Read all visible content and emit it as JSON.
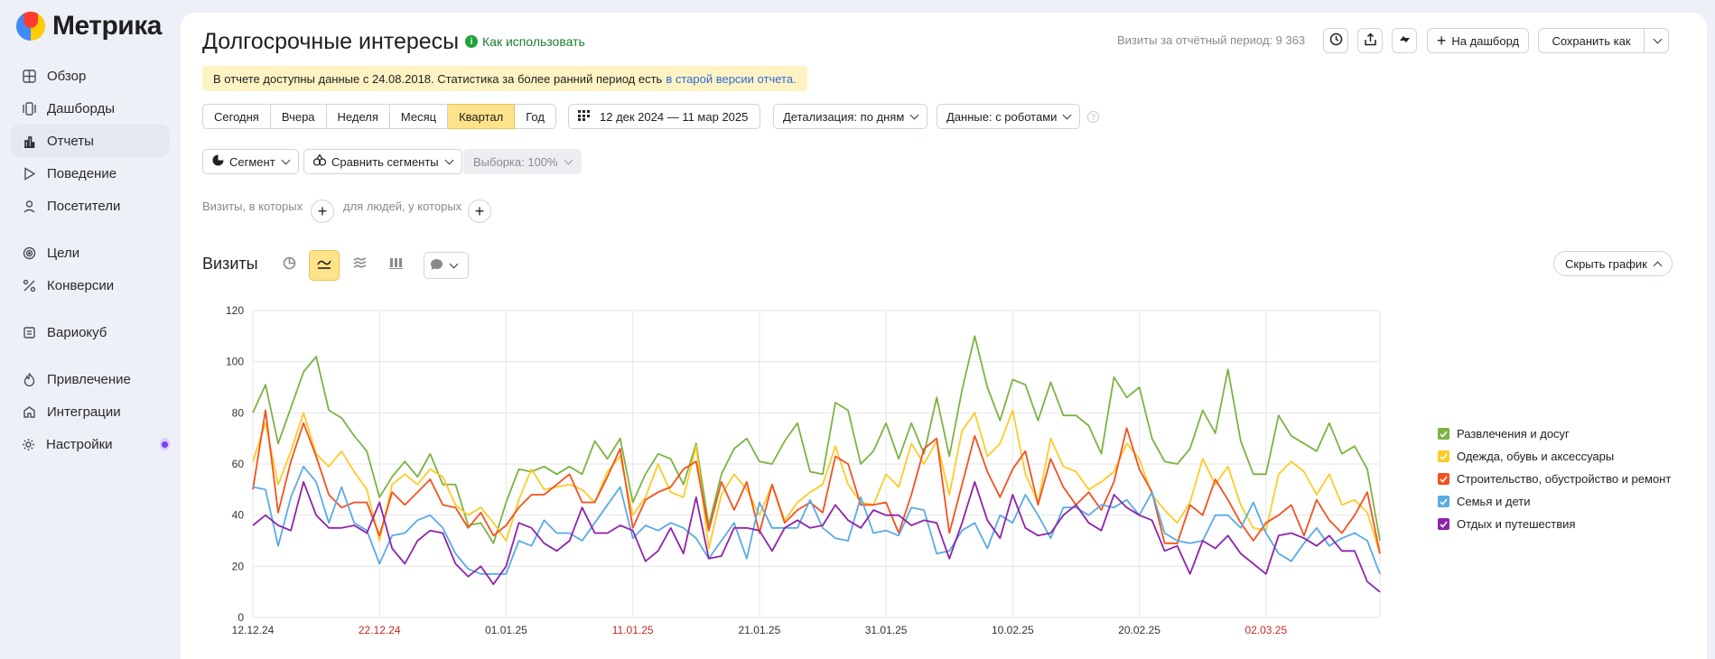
{
  "app": {
    "name": "Метрика"
  },
  "sidebar": {
    "items": [
      {
        "label": "Обзор",
        "icon": "grid-icon"
      },
      {
        "label": "Дашборды",
        "icon": "dashboards-icon"
      },
      {
        "label": "Отчеты",
        "icon": "bar-chart-icon",
        "active": true
      },
      {
        "label": "Поведение",
        "icon": "play-icon"
      },
      {
        "label": "Посетители",
        "icon": "person-icon"
      },
      {
        "label": "Цели",
        "icon": "target-icon"
      },
      {
        "label": "Конверсии",
        "icon": "percent-icon"
      },
      {
        "label": "Вариокуб",
        "icon": "cube-icon"
      },
      {
        "label": "Привлечение",
        "icon": "flame-icon"
      },
      {
        "label": "Интеграции",
        "icon": "integration-icon"
      },
      {
        "label": "Настройки",
        "icon": "gear-icon"
      }
    ]
  },
  "header": {
    "title": "Долгосрочные интересы",
    "how_to_use": "Как использовать",
    "visits_stat": "Визиты за отчётный период: 9 363",
    "add_dashboard": "На дашборд",
    "save_as": "Сохранить как"
  },
  "notice": {
    "text": "В отчете доступны данные с 24.08.2018. Статистика за более ранний период есть",
    "link": "в старой версии отчета."
  },
  "period": {
    "options": [
      "Сегодня",
      "Вчера",
      "Неделя",
      "Месяц",
      "Квартал",
      "Год"
    ],
    "selected": "Квартал",
    "date_range": "12 дек 2024 — 11 мар 2025",
    "detail": "Детализация: по дням",
    "data": "Данные: с роботами"
  },
  "segments": {
    "segment": "Сегмент",
    "compare": "Сравнить сегменты",
    "sample": "Выборка: 100%",
    "visits_where": "Визиты, в которых",
    "for_people": "для людей, у которых"
  },
  "chart_section": {
    "title": "Визиты",
    "hide_chart": "Скрыть график"
  },
  "chart_data": {
    "type": "line",
    "ylim": [
      0,
      120
    ],
    "yticks": [
      0,
      20,
      40,
      60,
      80,
      100,
      120
    ],
    "xticks": [
      {
        "label": "12.12.24",
        "index": 0,
        "weekend": false
      },
      {
        "label": "22.12.24",
        "index": 10,
        "weekend": true
      },
      {
        "label": "01.01.25",
        "index": 20,
        "weekend": false
      },
      {
        "label": "11.01.25",
        "index": 30,
        "weekend": true
      },
      {
        "label": "21.01.25",
        "index": 40,
        "weekend": false
      },
      {
        "label": "31.01.25",
        "index": 50,
        "weekend": false
      },
      {
        "label": "10.02.25",
        "index": 60,
        "weekend": false
      },
      {
        "label": "20.02.25",
        "index": 70,
        "weekend": false
      },
      {
        "label": "02.03.25",
        "index": 80,
        "weekend": true
      }
    ],
    "x_count": 90,
    "series": [
      {
        "name": "Развлечения и досуг",
        "color": "#7cb342",
        "values": [
          80,
          91,
          68,
          82,
          96,
          102,
          81,
          78,
          71,
          65,
          47,
          55,
          61,
          55,
          64,
          52,
          52,
          36,
          37,
          29,
          45,
          58,
          57,
          59,
          56,
          59,
          56,
          69,
          62,
          70,
          45,
          56,
          64,
          62,
          52,
          68,
          36,
          56,
          66,
          70,
          61,
          60,
          69,
          76,
          57,
          56,
          84,
          81,
          60,
          65,
          76,
          62,
          76,
          64,
          86,
          63,
          89,
          110,
          90,
          77,
          93,
          91,
          77,
          92,
          79,
          79,
          75,
          64,
          94,
          86,
          90,
          70,
          61,
          60,
          66,
          81,
          72,
          97,
          69,
          56,
          56,
          79,
          71,
          68,
          65,
          76,
          64,
          67,
          58,
          30
        ]
      },
      {
        "name": "Одежда, обувь и аксессуары",
        "color": "#ffca28",
        "values": [
          61,
          76,
          52,
          65,
          80,
          64,
          59,
          65,
          57,
          50,
          30,
          52,
          56,
          52,
          58,
          55,
          44,
          40,
          43,
          37,
          30,
          46,
          58,
          50,
          51,
          52,
          50,
          45,
          57,
          63,
          40,
          47,
          60,
          49,
          47,
          67,
          27,
          48,
          56,
          50,
          40,
          52,
          38,
          45,
          49,
          52,
          67,
          52,
          45,
          44,
          56,
          51,
          68,
          60,
          69,
          48,
          73,
          80,
          63,
          68,
          81,
          56,
          45,
          70,
          59,
          57,
          50,
          53,
          57,
          68,
          62,
          48,
          42,
          37,
          45,
          62,
          52,
          59,
          44,
          35,
          34,
          56,
          61,
          57,
          48,
          56,
          44,
          46,
          41,
          25
        ]
      },
      {
        "name": "Строительство, обустройство и ремонт",
        "color": "#f4511e",
        "values": [
          50,
          81,
          41,
          61,
          76,
          63,
          48,
          43,
          45,
          45,
          32,
          49,
          44,
          49,
          54,
          44,
          43,
          35,
          41,
          32,
          36,
          43,
          48,
          48,
          52,
          56,
          45,
          45,
          55,
          66,
          35,
          46,
          49,
          51,
          58,
          61,
          34,
          53,
          42,
          53,
          33,
          52,
          37,
          42,
          45,
          41,
          63,
          60,
          44,
          44,
          45,
          33,
          48,
          66,
          70,
          33,
          52,
          71,
          57,
          47,
          58,
          65,
          44,
          62,
          51,
          44,
          49,
          42,
          53,
          74,
          58,
          49,
          29,
          29,
          44,
          40,
          54,
          46,
          37,
          30,
          37,
          40,
          44,
          32,
          46,
          38,
          33,
          40,
          49,
          25
        ]
      },
      {
        "name": "Семья и дети",
        "color": "#5aaae6",
        "values": [
          51,
          50,
          28,
          47,
          59,
          53,
          37,
          51,
          37,
          34,
          21,
          32,
          33,
          38,
          40,
          35,
          25,
          19,
          17,
          17,
          17,
          30,
          28,
          38,
          33,
          33,
          30,
          37,
          44,
          51,
          31,
          36,
          34,
          37,
          35,
          31,
          23,
          30,
          37,
          23,
          45,
          35,
          35,
          35,
          46,
          35,
          31,
          30,
          47,
          33,
          34,
          32,
          43,
          42,
          25,
          26,
          34,
          37,
          27,
          40,
          37,
          48,
          40,
          31,
          43,
          43,
          40,
          44,
          43,
          46,
          40,
          49,
          33,
          30,
          29,
          30,
          40,
          40,
          35,
          45,
          33,
          25,
          22,
          29,
          35,
          28,
          31,
          33,
          30,
          17
        ]
      },
      {
        "name": "Отдых и путешествия",
        "color": "#8e24aa",
        "values": [
          36,
          40,
          36,
          34,
          53,
          40,
          35,
          35,
          36,
          33,
          45,
          27,
          21,
          30,
          34,
          33,
          21,
          16,
          20,
          13,
          20,
          37,
          35,
          29,
          26,
          30,
          43,
          33,
          33,
          36,
          34,
          22,
          26,
          35,
          25,
          47,
          23,
          24,
          35,
          35,
          34,
          26,
          35,
          38,
          35,
          36,
          44,
          38,
          35,
          42,
          40,
          40,
          36,
          38,
          37,
          23,
          37,
          53,
          38,
          31,
          48,
          35,
          32,
          33,
          40,
          44,
          37,
          34,
          48,
          43,
          40,
          38,
          26,
          28,
          17,
          30,
          27,
          32,
          25,
          21,
          17,
          32,
          33,
          31,
          28,
          32,
          26,
          26,
          14,
          10
        ]
      }
    ]
  }
}
